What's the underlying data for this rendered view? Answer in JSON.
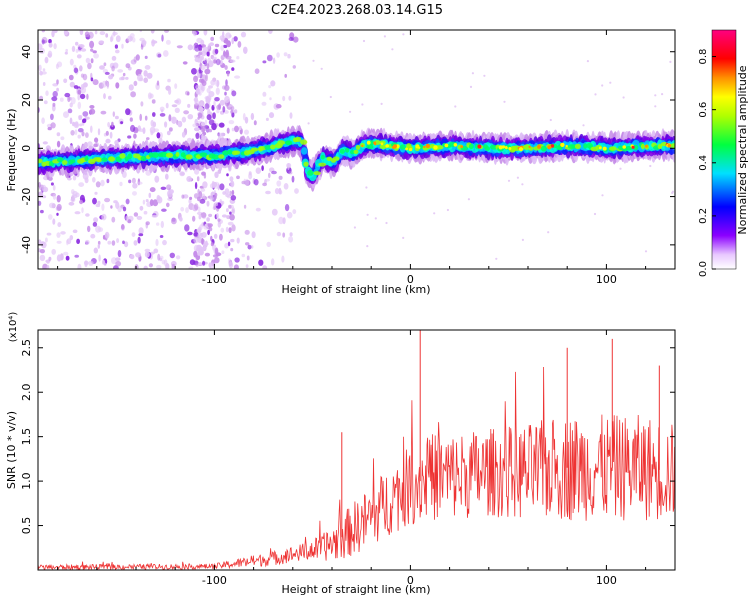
{
  "chart_data": [
    {
      "type": "heatmap",
      "title": "C2E4.2023.268.03.14.G15",
      "xlabel": "Height of straight line (km)",
      "ylabel": "Frequency (Hz)",
      "xlim": [
        -190,
        135
      ],
      "ylim": [
        -50,
        49
      ],
      "x_ticks": [
        -100,
        0,
        100
      ],
      "y_ticks": [
        -40,
        -20,
        0,
        20,
        40
      ],
      "ridge_center_hz": {
        "x": [
          -190,
          -150,
          -120,
          -100,
          -80,
          -60,
          -56,
          -53,
          -50,
          -45,
          -40,
          -35,
          -30,
          -25,
          -20,
          -10,
          0,
          20,
          40,
          60,
          80,
          100,
          120,
          135
        ],
        "y": [
          -6,
          -4,
          -3,
          -3,
          -1,
          3,
          3,
          -10,
          -11,
          -4,
          -6,
          -1,
          -2,
          1,
          2,
          1,
          0,
          1,
          0,
          0,
          1,
          0,
          1,
          1
        ]
      },
      "noise_region_km": [
        -190,
        -58
      ],
      "colorbar": {
        "label": "Normalized spectral amplitude",
        "range": [
          0.0,
          0.9
        ],
        "ticks": [
          "0.0",
          "0.2",
          "0.4",
          "0.6",
          "0.8"
        ],
        "colormap": [
          "#ffffff",
          "#8b00ff",
          "#0000ff",
          "#00ffff",
          "#00ff00",
          "#ffff00",
          "#ff8000",
          "#ff0000",
          "#ff0080"
        ]
      }
    },
    {
      "type": "line",
      "xlabel": "Height of straight line (km)",
      "ylabel": "SNR (10 * v/v)",
      "y_multiplier_label": "(x10⁴)",
      "xlim": [
        -190,
        135
      ],
      "ylim": [
        0,
        2.7
      ],
      "x_ticks": [
        -100,
        0,
        100
      ],
      "y_ticks": [
        "0.5",
        "1.0",
        "1.5",
        "2.0",
        "2.5"
      ],
      "color": "#ee3333",
      "envelope": {
        "x": [
          -190,
          -100,
          -90,
          -70,
          -55,
          -45,
          -38,
          -30,
          -20,
          -10,
          0,
          10,
          20,
          40,
          60,
          80,
          100,
          120,
          135
        ],
        "mean": [
          0.03,
          0.04,
          0.07,
          0.13,
          0.2,
          0.25,
          0.32,
          0.45,
          0.6,
          0.8,
          0.95,
          1.05,
          1.05,
          1.1,
          1.1,
          1.15,
          1.15,
          1.15,
          1.1
        ],
        "spread": [
          0.03,
          0.03,
          0.05,
          0.08,
          0.1,
          0.15,
          0.22,
          0.3,
          0.35,
          0.4,
          0.45,
          0.5,
          0.5,
          0.5,
          0.55,
          0.6,
          0.6,
          0.6,
          0.55
        ]
      },
      "spikes": [
        [
          -35,
          1.55
        ],
        [
          5,
          2.7
        ],
        [
          80,
          2.5
        ],
        [
          103,
          2.6
        ],
        [
          127,
          2.3
        ]
      ]
    }
  ]
}
